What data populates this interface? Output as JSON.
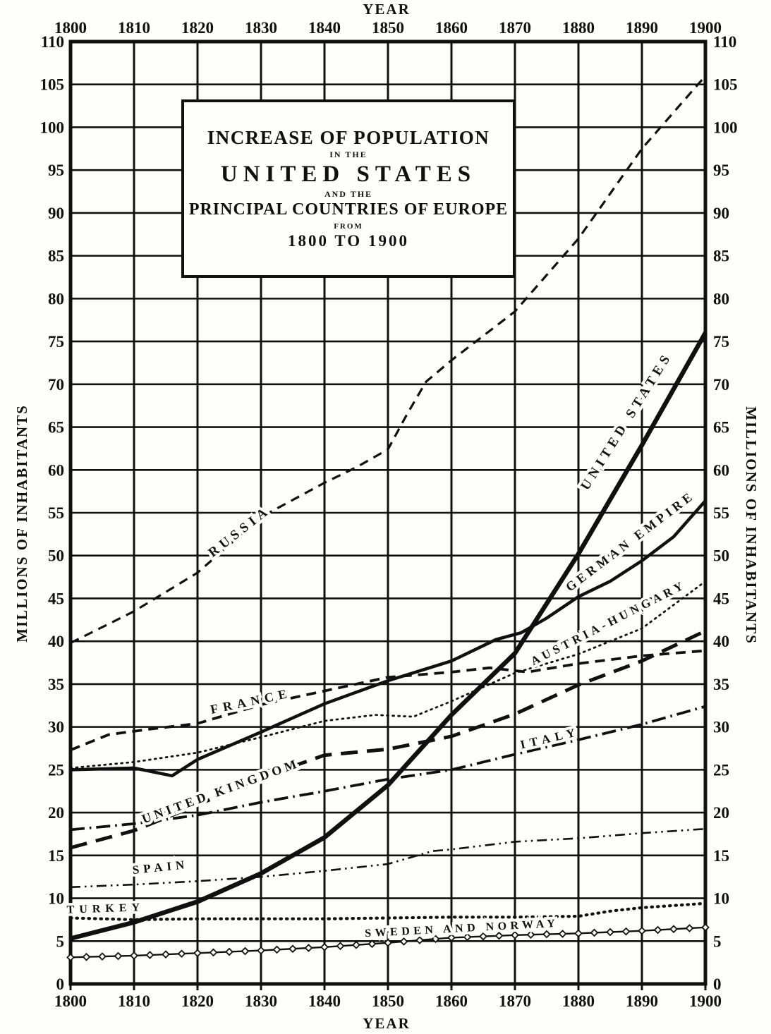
{
  "page": {
    "ink": "#101010",
    "paper": "#fefefc"
  },
  "title_box": {
    "line1": "INCREASE OF POPULATION",
    "line2": "IN THE",
    "line3": "UNITED STATES",
    "line4": "AND THE",
    "line5": "PRINCIPAL COUNTRIES OF EUROPE",
    "line6": "FROM",
    "line7": "1800 TO 1900"
  },
  "axes": {
    "top_axis_label": "YEAR",
    "bottom_axis_label": "YEAR",
    "left_axis_label": "MILLIONS OF INHABITANTS",
    "right_axis_label": "MILLIONS OF INHABITANTS",
    "x_ticks": [
      1800,
      1810,
      1820,
      1830,
      1840,
      1850,
      1860,
      1870,
      1880,
      1890,
      1900
    ],
    "y_ticks": [
      0,
      5,
      10,
      15,
      20,
      25,
      30,
      35,
      40,
      45,
      50,
      55,
      60,
      65,
      70,
      75,
      80,
      85,
      90,
      95,
      100,
      105,
      110
    ]
  },
  "chart_data": {
    "type": "line",
    "title": "Increase of Population in the United States and the Principal Countries of Europe from 1800 to 1900",
    "xlabel": "YEAR",
    "ylabel": "MILLIONS OF INHABITANTS",
    "xlim": [
      1800,
      1900
    ],
    "ylim": [
      0,
      110
    ],
    "x_tick_interval": 10,
    "y_tick_interval": 5,
    "grid": true,
    "legend_position": "labels drawn along each curve",
    "series": [
      {
        "name": "RUSSIA",
        "line_style": "dashed",
        "points": [
          [
            1800,
            39.8
          ],
          [
            1810,
            43.5
          ],
          [
            1820,
            48
          ],
          [
            1830,
            54.5
          ],
          [
            1840,
            58.5
          ],
          [
            1845,
            60.3
          ],
          [
            1850,
            62.4
          ],
          [
            1853,
            66.5
          ],
          [
            1856,
            70.3
          ],
          [
            1860,
            72.8
          ],
          [
            1870,
            78.5
          ],
          [
            1880,
            87
          ],
          [
            1890,
            97.5
          ],
          [
            1900,
            106
          ]
        ]
      },
      {
        "name": "UNITED STATES",
        "line_style": "solid-thick",
        "points": [
          [
            1800,
            5.3
          ],
          [
            1810,
            7.2
          ],
          [
            1820,
            9.6
          ],
          [
            1830,
            12.9
          ],
          [
            1840,
            17.1
          ],
          [
            1850,
            23.2
          ],
          [
            1860,
            31.4
          ],
          [
            1870,
            38.6
          ],
          [
            1880,
            50.2
          ],
          [
            1890,
            62.9
          ],
          [
            1900,
            76
          ]
        ]
      },
      {
        "name": "GERMAN EMPIRE",
        "line_style": "solid",
        "points": [
          [
            1800,
            25
          ],
          [
            1810,
            25.2
          ],
          [
            1816,
            24.3
          ],
          [
            1820,
            26.2
          ],
          [
            1830,
            29.4
          ],
          [
            1840,
            32.7
          ],
          [
            1850,
            35.4
          ],
          [
            1860,
            37.7
          ],
          [
            1867,
            40.2
          ],
          [
            1871,
            41
          ],
          [
            1875,
            42.7
          ],
          [
            1880,
            45.2
          ],
          [
            1885,
            47
          ],
          [
            1890,
            49.4
          ],
          [
            1895,
            52.2
          ],
          [
            1900,
            56.4
          ]
        ]
      },
      {
        "name": "AUSTRIA-HUNGARY",
        "line_style": "dotted",
        "points": [
          [
            1800,
            25.2
          ],
          [
            1810,
            25.9
          ],
          [
            1820,
            27
          ],
          [
            1830,
            28.8
          ],
          [
            1840,
            30.7
          ],
          [
            1848,
            31.4
          ],
          [
            1854,
            31.2
          ],
          [
            1860,
            33
          ],
          [
            1870,
            36.3
          ],
          [
            1880,
            38.5
          ],
          [
            1890,
            41.5
          ],
          [
            1900,
            47
          ]
        ]
      },
      {
        "name": "FRANCE",
        "line_style": "dashed",
        "points": [
          [
            1800,
            27.3
          ],
          [
            1806,
            29.1
          ],
          [
            1812,
            29.7
          ],
          [
            1820,
            30.4
          ],
          [
            1830,
            32.6
          ],
          [
            1840,
            34.2
          ],
          [
            1850,
            35.8
          ],
          [
            1860,
            36.4
          ],
          [
            1866,
            36.9
          ],
          [
            1872,
            36.4
          ],
          [
            1880,
            37.4
          ],
          [
            1890,
            38.3
          ],
          [
            1900,
            38.9
          ]
        ]
      },
      {
        "name": "UNITED KINGDOM",
        "line_style": "long-dash-heavy",
        "points": [
          [
            1800,
            15.9
          ],
          [
            1810,
            17.9
          ],
          [
            1820,
            20.9
          ],
          [
            1830,
            24.1
          ],
          [
            1840,
            26.7
          ],
          [
            1850,
            27.4
          ],
          [
            1860,
            28.9
          ],
          [
            1870,
            31.5
          ],
          [
            1880,
            34.9
          ],
          [
            1890,
            37.7
          ],
          [
            1900,
            41.2
          ]
        ]
      },
      {
        "name": "ITALY",
        "line_style": "dash-dot",
        "points": [
          [
            1800,
            18
          ],
          [
            1810,
            18.7
          ],
          [
            1820,
            19.7
          ],
          [
            1830,
            21.2
          ],
          [
            1840,
            22.5
          ],
          [
            1850,
            23.9
          ],
          [
            1860,
            25
          ],
          [
            1870,
            26.8
          ],
          [
            1880,
            28.5
          ],
          [
            1890,
            30.3
          ],
          [
            1900,
            32.4
          ]
        ]
      },
      {
        "name": "SPAIN",
        "line_style": "dash-dot-dot",
        "points": [
          [
            1800,
            11.3
          ],
          [
            1810,
            11.6
          ],
          [
            1820,
            12
          ],
          [
            1830,
            12.5
          ],
          [
            1840,
            13.2
          ],
          [
            1850,
            14
          ],
          [
            1857,
            15.5
          ],
          [
            1860,
            15.7
          ],
          [
            1870,
            16.6
          ],
          [
            1880,
            17
          ],
          [
            1890,
            17.6
          ],
          [
            1900,
            18.1
          ]
        ]
      },
      {
        "name": "TURKEY",
        "line_style": "bold-dotted",
        "points": [
          [
            1800,
            7.7
          ],
          [
            1810,
            7.5
          ],
          [
            1820,
            7.6
          ],
          [
            1830,
            7.6
          ],
          [
            1840,
            7.6
          ],
          [
            1850,
            7.7
          ],
          [
            1860,
            7.8
          ],
          [
            1870,
            7.8
          ],
          [
            1880,
            7.9
          ],
          [
            1885,
            8.5
          ],
          [
            1890,
            8.9
          ],
          [
            1900,
            9.4
          ]
        ]
      },
      {
        "name": "SWEDEN AND NORWAY",
        "line_style": "solid-diamond-markers",
        "points": [
          [
            1800,
            3.1
          ],
          [
            1810,
            3.3
          ],
          [
            1820,
            3.6
          ],
          [
            1830,
            3.9
          ],
          [
            1840,
            4.3
          ],
          [
            1850,
            4.8
          ],
          [
            1860,
            5.4
          ],
          [
            1870,
            5.7
          ],
          [
            1880,
            5.9
          ],
          [
            1890,
            6.2
          ],
          [
            1900,
            6.6
          ]
        ]
      }
    ]
  }
}
